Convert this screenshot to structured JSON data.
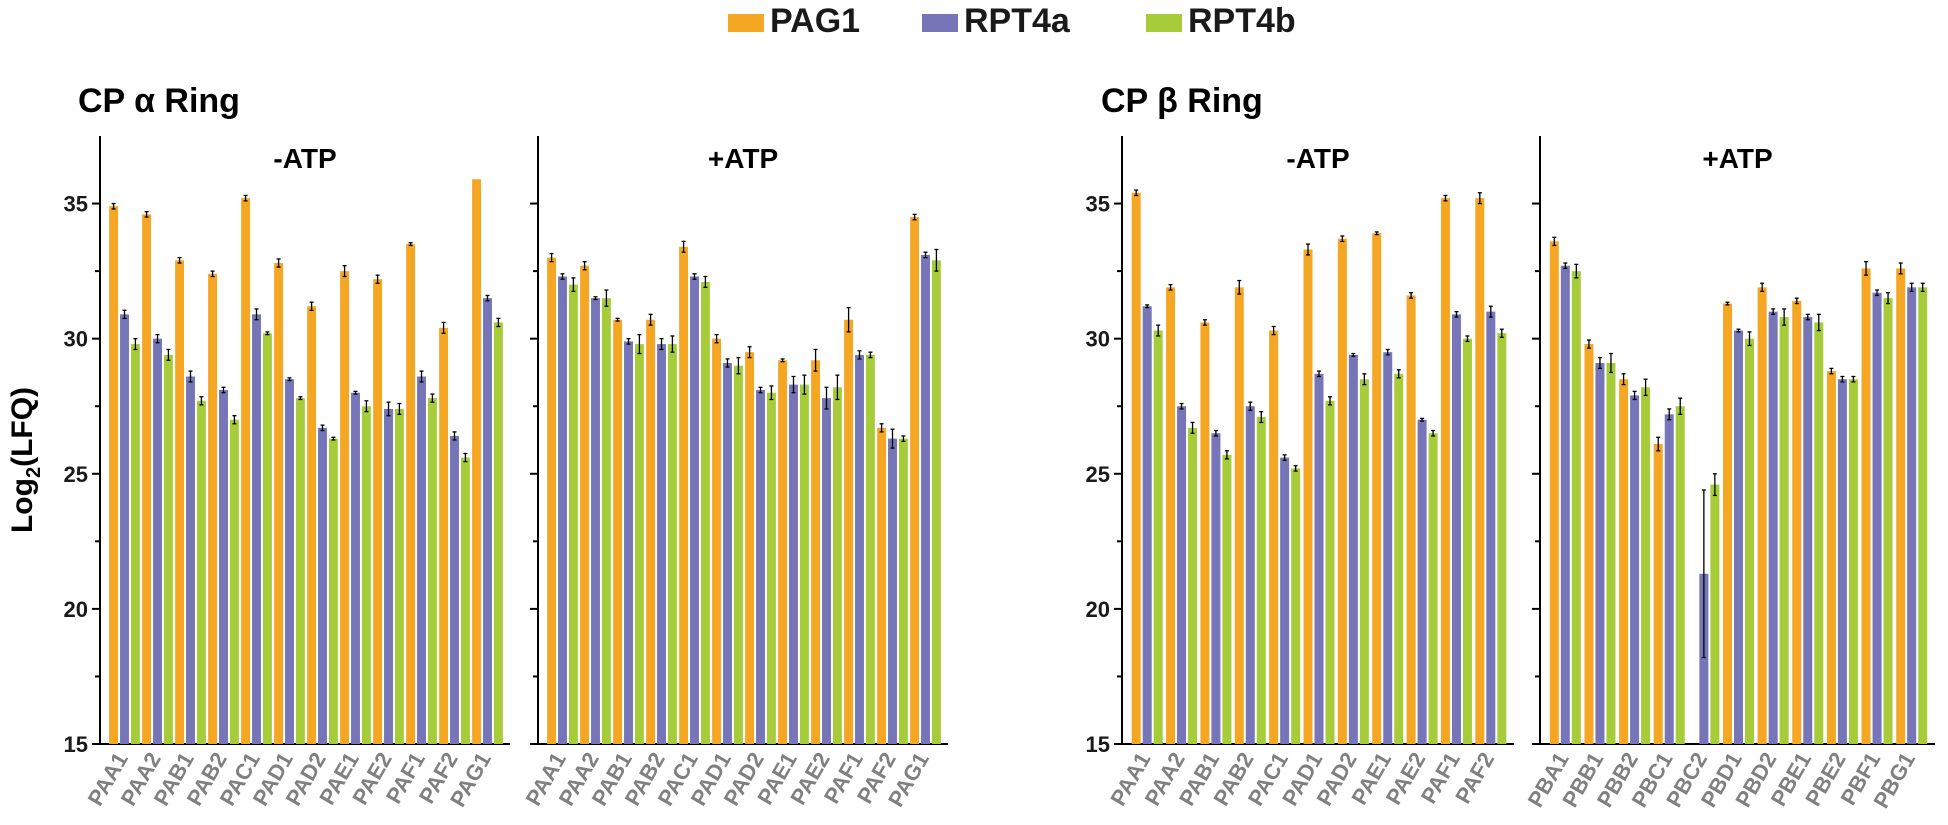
{
  "chart_data": {
    "type": "bar",
    "ylabel": "Log2(LFQ)",
    "ylabel_main": "Log",
    "ylabel_sub": "2",
    "ylabel_tail": "(LFQ)",
    "ylim": [
      15,
      37.5
    ],
    "yticks": [
      "15",
      "20",
      "25",
      "30",
      "35"
    ],
    "legend_position": "top",
    "series_names": [
      "PAG1",
      "RPT4a",
      "RPT4b"
    ],
    "colors": {
      "PAG1": "#f5a623",
      "RPT4a": "#7575b8",
      "RPT4b": "#a6cc3a"
    },
    "groups": [
      {
        "title": "CP α Ring",
        "categories": [
          "PAA1",
          "PAA2",
          "PAB1",
          "PAB2",
          "PAC1",
          "PAD1",
          "PAD2",
          "PAE1",
          "PAE2",
          "PAF1",
          "PAF2",
          "PAG1"
        ],
        "panels": [
          {
            "title": "-ATP",
            "series": [
              {
                "name": "PAG1",
                "values": [
                  34.9,
                  34.6,
                  32.9,
                  32.4,
                  35.2,
                  32.8,
                  31.2,
                  32.5,
                  32.2,
                  33.5,
                  30.4,
                  35.9
                ],
                "errors": [
                  0.1,
                  0.1,
                  0.1,
                  0.1,
                  0.1,
                  0.15,
                  0.15,
                  0.2,
                  0.15,
                  0.05,
                  0.2,
                  0
                ]
              },
              {
                "name": "RPT4a",
                "values": [
                  30.9,
                  30.0,
                  28.6,
                  28.1,
                  30.9,
                  28.5,
                  26.7,
                  28.0,
                  27.4,
                  28.6,
                  26.4,
                  31.5
                ],
                "errors": [
                  0.15,
                  0.15,
                  0.2,
                  0.1,
                  0.2,
                  0.05,
                  0.1,
                  0.05,
                  0.25,
                  0.2,
                  0.15,
                  0.1
                ]
              },
              {
                "name": "RPT4b",
                "values": [
                  29.8,
                  29.4,
                  27.7,
                  27.0,
                  30.2,
                  27.8,
                  26.3,
                  27.5,
                  27.4,
                  27.8,
                  25.6,
                  30.6
                ],
                "errors": [
                  0.2,
                  0.2,
                  0.15,
                  0.15,
                  0.05,
                  0.05,
                  0.05,
                  0.2,
                  0.2,
                  0.15,
                  0.15,
                  0.15
                ]
              }
            ]
          },
          {
            "title": "+ATP",
            "series": [
              {
                "name": "PAG1",
                "values": [
                  33.0,
                  32.7,
                  30.7,
                  30.7,
                  33.4,
                  30.0,
                  29.5,
                  29.2,
                  29.2,
                  30.7,
                  26.7,
                  34.5
                ],
                "errors": [
                  0.15,
                  0.15,
                  0.05,
                  0.2,
                  0.2,
                  0.15,
                  0.2,
                  0.05,
                  0.4,
                  0.45,
                  0.15,
                  0.1
                ]
              },
              {
                "name": "RPT4a",
                "values": [
                  32.3,
                  31.5,
                  29.9,
                  29.8,
                  32.3,
                  29.1,
                  28.1,
                  28.3,
                  27.8,
                  29.4,
                  26.3,
                  33.1
                ],
                "errors": [
                  0.1,
                  0.05,
                  0.1,
                  0.2,
                  0.1,
                  0.15,
                  0.1,
                  0.3,
                  0.4,
                  0.15,
                  0.35,
                  0.1
                ]
              },
              {
                "name": "RPT4b",
                "values": [
                  32.0,
                  31.5,
                  29.8,
                  29.8,
                  32.1,
                  29.0,
                  28.0,
                  28.3,
                  28.2,
                  29.4,
                  26.3,
                  32.9
                ],
                "errors": [
                  0.25,
                  0.3,
                  0.35,
                  0.3,
                  0.2,
                  0.3,
                  0.25,
                  0.35,
                  0.45,
                  0.1,
                  0.1,
                  0.4
                ]
              }
            ]
          }
        ]
      },
      {
        "title": "CP β Ring",
        "categories_neg": [
          "PAA1",
          "PAA2",
          "PAB1",
          "PAB2",
          "PAC1",
          "PAD1",
          "PAD2",
          "PAE1",
          "PAE2",
          "PAF1",
          "PAF2"
        ],
        "categories_pos": [
          "PBA1",
          "PBB1",
          "PBB2",
          "PBC1",
          "PBC2",
          "PBD1",
          "PBD2",
          "PBE1",
          "PBE2",
          "PBF1",
          "PBG1"
        ],
        "panels": [
          {
            "title": "-ATP",
            "series": [
              {
                "name": "PAG1",
                "values": [
                  35.4,
                  31.9,
                  30.6,
                  31.9,
                  30.3,
                  33.3,
                  33.7,
                  33.9,
                  31.6,
                  35.2,
                  35.2
                ],
                "errors": [
                  0.1,
                  0.1,
                  0.1,
                  0.25,
                  0.15,
                  0.2,
                  0.1,
                  0.05,
                  0.1,
                  0.1,
                  0.2
                ]
              },
              {
                "name": "RPT4a",
                "values": [
                  31.2,
                  27.5,
                  26.5,
                  27.5,
                  25.6,
                  28.7,
                  29.4,
                  29.5,
                  27.0,
                  30.9,
                  31.0
                ],
                "errors": [
                  0.05,
                  0.1,
                  0.1,
                  0.15,
                  0.1,
                  0.1,
                  0.05,
                  0.1,
                  0.05,
                  0.1,
                  0.2
                ]
              },
              {
                "name": "RPT4b",
                "values": [
                  30.3,
                  26.7,
                  25.7,
                  27.1,
                  25.2,
                  27.7,
                  28.5,
                  28.7,
                  26.5,
                  30.0,
                  30.2
                ],
                "errors": [
                  0.2,
                  0.2,
                  0.15,
                  0.2,
                  0.1,
                  0.15,
                  0.2,
                  0.15,
                  0.1,
                  0.1,
                  0.15
                ]
              }
            ]
          },
          {
            "title": "+ATP",
            "series": [
              {
                "name": "PAG1",
                "values": [
                  33.6,
                  29.8,
                  28.5,
                  26.1,
                  15.0,
                  31.3,
                  31.9,
                  31.4,
                  28.8,
                  32.6,
                  32.6
                ],
                "errors": [
                  0.15,
                  0.15,
                  0.2,
                  0.25,
                  0,
                  0.05,
                  0.15,
                  0.1,
                  0.1,
                  0.25,
                  0.2
                ]
              },
              {
                "name": "RPT4a",
                "values": [
                  32.7,
                  29.1,
                  27.9,
                  27.2,
                  21.3,
                  30.3,
                  31.0,
                  30.8,
                  28.5,
                  31.7,
                  31.9
                ],
                "errors": [
                  0.1,
                  0.2,
                  0.15,
                  0.2,
                  3.1,
                  0.05,
                  0.1,
                  0.1,
                  0.1,
                  0.1,
                  0.15
                ]
              },
              {
                "name": "RPT4b",
                "values": [
                  32.5,
                  29.1,
                  28.2,
                  27.5,
                  24.6,
                  30.0,
                  30.8,
                  30.6,
                  28.5,
                  31.5,
                  31.9
                ],
                "errors": [
                  0.25,
                  0.35,
                  0.3,
                  0.3,
                  0.4,
                  0.25,
                  0.3,
                  0.3,
                  0.1,
                  0.2,
                  0.15
                ]
              }
            ]
          }
        ]
      }
    ]
  }
}
